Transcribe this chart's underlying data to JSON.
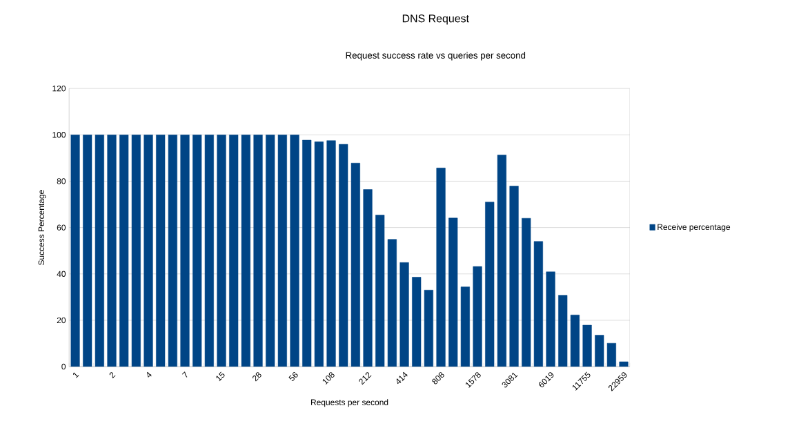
{
  "chart_data": {
    "type": "bar",
    "title": "DNS Request",
    "subtitle": "Request success rate vs queries per second",
    "xlabel": "Requests per second",
    "ylabel": "Success Percentage",
    "categories": [
      "1",
      null,
      null,
      "2",
      null,
      null,
      "4",
      null,
      null,
      "7",
      null,
      null,
      "15",
      null,
      null,
      "28",
      null,
      null,
      "56",
      null,
      null,
      "108",
      null,
      null,
      "212",
      null,
      null,
      "414",
      null,
      null,
      "808",
      null,
      null,
      "1578",
      null,
      null,
      "3081",
      null,
      null,
      "6019",
      null,
      null,
      "11755",
      null,
      null,
      "22959"
    ],
    "series": [
      {
        "name": "Receive percentage",
        "color": "#004586",
        "values": [
          100,
          100,
          100,
          100,
          100,
          100,
          100,
          100,
          100,
          100,
          100,
          100,
          100,
          100,
          100,
          100,
          100,
          100,
          100,
          97.7,
          97.0,
          97.5,
          95.9,
          87.8,
          76.4,
          65.4,
          54.9,
          44.9,
          38.6,
          33.0,
          85.7,
          64.1,
          34.4,
          43.2,
          71.0,
          91.3,
          77.9,
          64.0,
          54.0,
          40.9,
          30.8,
          22.3,
          17.9,
          13.6,
          10.1,
          2.1
        ]
      }
    ],
    "ylim": [
      0,
      120
    ],
    "yticks": [
      0,
      20,
      40,
      60,
      80,
      100,
      120
    ],
    "grid": "y",
    "legend": "right"
  }
}
